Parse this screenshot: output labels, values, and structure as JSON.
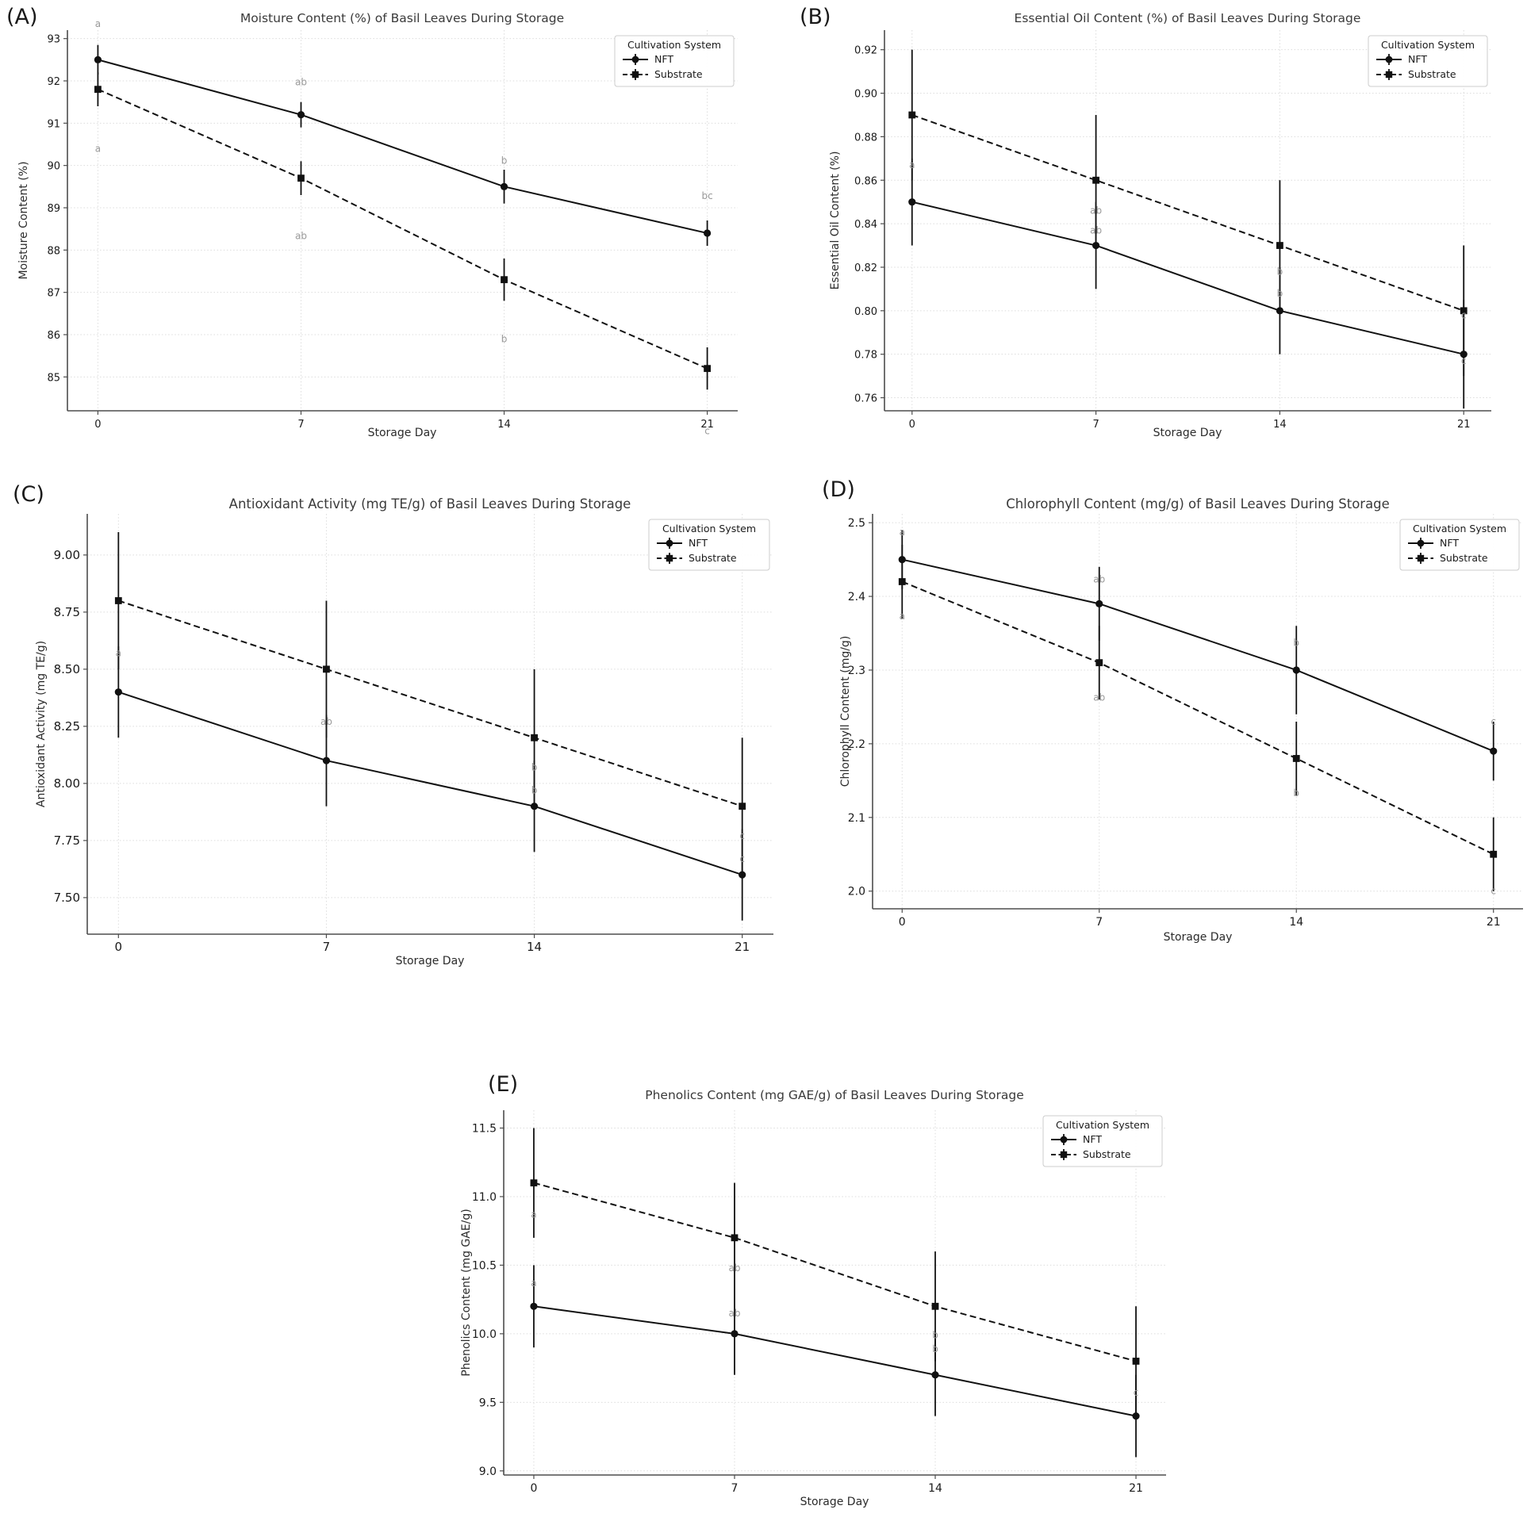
{
  "palette": {
    "line_color": "#111111",
    "sig_letter_color": "#999999",
    "grid_color": "#dcdcdc",
    "spine_color": "#4d4d4d",
    "title_color": "#3a3a3a",
    "legend_border": "#cccccc",
    "background": "#ffffff"
  },
  "chart_data": [
    {
      "type": "line",
      "panel": "(A)",
      "title": "Moisture Content (%) of Basil Leaves During Storage",
      "xlabel": "Storage Day",
      "ylabel": "Moisture Content (%)",
      "x": [
        0,
        7,
        14,
        21
      ],
      "x_tick_labels": [
        "0",
        "7",
        "14",
        "21"
      ],
      "xlim": [
        -1.05,
        22.05
      ],
      "ylim": [
        84.2,
        93.2
      ],
      "y_ticks": [
        {
          "v": 85,
          "label": "85"
        },
        {
          "v": 86,
          "label": "86"
        },
        {
          "v": 87,
          "label": "87"
        },
        {
          "v": 88,
          "label": "88"
        },
        {
          "v": 89,
          "label": "89"
        },
        {
          "v": 90,
          "label": "90"
        },
        {
          "v": 91,
          "label": "91"
        },
        {
          "v": 92,
          "label": "92"
        },
        {
          "v": 93,
          "label": "93"
        }
      ],
      "grid": true,
      "legend": {
        "title": "Cultivation System",
        "position": "upper right"
      },
      "series": [
        {
          "name": "NFT",
          "line": "solid",
          "marker": "circle",
          "values": [
            92.5,
            91.2,
            89.5,
            88.4
          ],
          "errors": [
            0.35,
            0.3,
            0.4,
            0.3
          ]
        },
        {
          "name": "Substrate",
          "line": "dashed",
          "marker": "square",
          "values": [
            91.8,
            89.7,
            87.3,
            85.2
          ],
          "errors": [
            0.4,
            0.4,
            0.5,
            0.5
          ]
        }
      ],
      "sig_letters": [
        {
          "x": 0,
          "y": 93.35,
          "text": "a"
        },
        {
          "x": 0,
          "y": 90.4,
          "text": "a"
        },
        {
          "x": 7,
          "y": 91.97,
          "text": "ab"
        },
        {
          "x": 7,
          "y": 88.33,
          "text": "ab"
        },
        {
          "x": 14,
          "y": 90.12,
          "text": "b"
        },
        {
          "x": 14,
          "y": 85.9,
          "text": "b"
        },
        {
          "x": 21,
          "y": 89.28,
          "text": "bc"
        },
        {
          "x": 21,
          "y": 83.72,
          "text": "c"
        }
      ]
    },
    {
      "type": "line",
      "panel": "(B)",
      "title": "Essential Oil Content (%) of Basil Leaves During Storage",
      "xlabel": "Storage Day",
      "ylabel": "Essential Oil Content (%)",
      "x": [
        0,
        7,
        14,
        21
      ],
      "x_tick_labels": [
        "0",
        "7",
        "14",
        "21"
      ],
      "xlim": [
        -1.05,
        22.05
      ],
      "ylim": [
        0.754,
        0.929
      ],
      "y_ticks": [
        {
          "v": 0.76,
          "label": "0.76"
        },
        {
          "v": 0.78,
          "label": "0.78"
        },
        {
          "v": 0.8,
          "label": "0.80"
        },
        {
          "v": 0.82,
          "label": "0.82"
        },
        {
          "v": 0.84,
          "label": "0.84"
        },
        {
          "v": 0.86,
          "label": "0.86"
        },
        {
          "v": 0.88,
          "label": "0.88"
        },
        {
          "v": 0.9,
          "label": "0.90"
        },
        {
          "v": 0.92,
          "label": "0.92"
        }
      ],
      "grid": true,
      "legend": {
        "title": "Cultivation System",
        "position": "upper right"
      },
      "series": [
        {
          "name": "NFT",
          "line": "solid",
          "marker": "circle",
          "values": [
            0.85,
            0.83,
            0.8,
            0.78
          ],
          "errors": [
            0.02,
            0.02,
            0.02,
            0.025
          ]
        },
        {
          "name": "Substrate",
          "line": "dashed",
          "marker": "square",
          "values": [
            0.89,
            0.86,
            0.83,
            0.8
          ],
          "errors": [
            0.03,
            0.03,
            0.03,
            0.03
          ]
        }
      ],
      "sig_letters": [
        {
          "x": 0,
          "y": 0.867,
          "text": "a"
        },
        {
          "x": 7,
          "y": 0.846,
          "text": "ab"
        },
        {
          "x": 7,
          "y": 0.837,
          "text": "ab"
        },
        {
          "x": 14,
          "y": 0.818,
          "text": "b"
        },
        {
          "x": 14,
          "y": 0.808,
          "text": "b"
        },
        {
          "x": 21,
          "y": 0.798,
          "text": "c"
        },
        {
          "x": 21,
          "y": 0.777,
          "text": "c"
        }
      ]
    },
    {
      "type": "line",
      "panel": "(C)",
      "title": "Antioxidant Activity (mg TE/g) of Basil Leaves During Storage",
      "xlabel": "Storage Day",
      "ylabel": "Antioxidant Activity (mg TE/g)",
      "x": [
        0,
        7,
        14,
        21
      ],
      "x_tick_labels": [
        "0",
        "7",
        "14",
        "21"
      ],
      "xlim": [
        -1.05,
        22.05
      ],
      "ylim": [
        7.34,
        9.18
      ],
      "y_ticks": [
        {
          "v": 7.5,
          "label": "7.50"
        },
        {
          "v": 7.75,
          "label": "7.75"
        },
        {
          "v": 8.0,
          "label": "8.00"
        },
        {
          "v": 8.25,
          "label": "8.25"
        },
        {
          "v": 8.5,
          "label": "8.50"
        },
        {
          "v": 8.75,
          "label": "8.75"
        },
        {
          "v": 9.0,
          "label": "9.00"
        }
      ],
      "grid": true,
      "legend": {
        "title": "Cultivation System",
        "position": "upper right"
      },
      "series": [
        {
          "name": "NFT",
          "line": "solid",
          "marker": "circle",
          "values": [
            8.4,
            8.1,
            7.9,
            7.6
          ],
          "errors": [
            0.2,
            0.2,
            0.2,
            0.2
          ]
        },
        {
          "name": "Substrate",
          "line": "dashed",
          "marker": "square",
          "values": [
            8.8,
            8.5,
            8.2,
            7.9
          ],
          "errors": [
            0.3,
            0.3,
            0.3,
            0.3
          ]
        }
      ],
      "sig_letters": [
        {
          "x": 0,
          "y": 8.57,
          "text": "a"
        },
        {
          "x": 7,
          "y": 8.27,
          "text": "ab"
        },
        {
          "x": 14,
          "y": 8.07,
          "text": "b"
        },
        {
          "x": 14,
          "y": 7.97,
          "text": "b"
        },
        {
          "x": 21,
          "y": 7.77,
          "text": "c"
        },
        {
          "x": 21,
          "y": 7.67,
          "text": "c"
        }
      ]
    },
    {
      "type": "line",
      "panel": "(D)",
      "title": "Chlorophyll Content (mg/g) of Basil Leaves During Storage",
      "xlabel": "Storage Day",
      "ylabel": "Chlorophyll Content (mg/g)",
      "x": [
        0,
        7,
        14,
        21
      ],
      "x_tick_labels": [
        "0",
        "7",
        "14",
        "21"
      ],
      "xlim": [
        -1.05,
        22.05
      ],
      "ylim": [
        1.976,
        2.512
      ],
      "y_ticks": [
        {
          "v": 2.0,
          "label": "2.0"
        },
        {
          "v": 2.1,
          "label": "2.1"
        },
        {
          "v": 2.2,
          "label": "2.2"
        },
        {
          "v": 2.3,
          "label": "2.3"
        },
        {
          "v": 2.4,
          "label": "2.4"
        },
        {
          "v": 2.5,
          "label": "2.5"
        }
      ],
      "grid": true,
      "legend": {
        "title": "Cultivation System",
        "position": "upper right"
      },
      "series": [
        {
          "name": "NFT",
          "line": "solid",
          "marker": "circle",
          "values": [
            2.45,
            2.39,
            2.3,
            2.19
          ],
          "errors": [
            0.04,
            0.05,
            0.06,
            0.04
          ]
        },
        {
          "name": "Substrate",
          "line": "dashed",
          "marker": "square",
          "values": [
            2.42,
            2.31,
            2.18,
            2.05
          ],
          "errors": [
            0.05,
            0.05,
            0.05,
            0.05
          ]
        }
      ],
      "sig_letters": [
        {
          "x": 0,
          "y": 2.487,
          "text": "a"
        },
        {
          "x": 0,
          "y": 2.373,
          "text": "a"
        },
        {
          "x": 7,
          "y": 2.423,
          "text": "ab"
        },
        {
          "x": 7,
          "y": 2.263,
          "text": "ab"
        },
        {
          "x": 14,
          "y": 2.337,
          "text": "b"
        },
        {
          "x": 14,
          "y": 2.133,
          "text": "b"
        },
        {
          "x": 21,
          "y": 2.23,
          "text": "c"
        },
        {
          "x": 21,
          "y": 2.0,
          "text": "c"
        }
      ]
    },
    {
      "type": "line",
      "panel": "(E)",
      "title": "Phenolics Content (mg GAE/g) of Basil Leaves During Storage",
      "xlabel": "Storage Day",
      "ylabel": "Phenolics Content (mg GAE/g)",
      "x": [
        0,
        7,
        14,
        21
      ],
      "x_tick_labels": [
        "0",
        "7",
        "14",
        "21"
      ],
      "xlim": [
        -1.05,
        22.05
      ],
      "ylim": [
        8.97,
        11.63
      ],
      "y_ticks": [
        {
          "v": 9.0,
          "label": "9.0"
        },
        {
          "v": 9.5,
          "label": "9.5"
        },
        {
          "v": 10.0,
          "label": "10.0"
        },
        {
          "v": 10.5,
          "label": "10.5"
        },
        {
          "v": 11.0,
          "label": "11.0"
        },
        {
          "v": 11.5,
          "label": "11.5"
        }
      ],
      "grid": true,
      "legend": {
        "title": "Cultivation System",
        "position": "upper right"
      },
      "series": [
        {
          "name": "NFT",
          "line": "solid",
          "marker": "circle",
          "values": [
            10.2,
            10.0,
            9.7,
            9.4
          ],
          "errors": [
            0.3,
            0.3,
            0.3,
            0.3
          ]
        },
        {
          "name": "Substrate",
          "line": "dashed",
          "marker": "square",
          "values": [
            11.1,
            10.7,
            10.2,
            9.8
          ],
          "errors": [
            0.4,
            0.4,
            0.4,
            0.4
          ]
        }
      ],
      "sig_letters": [
        {
          "x": 0,
          "y": 10.87,
          "text": "a"
        },
        {
          "x": 0,
          "y": 10.37,
          "text": "a"
        },
        {
          "x": 7,
          "y": 10.48,
          "text": "ab"
        },
        {
          "x": 7,
          "y": 10.15,
          "text": "ab"
        },
        {
          "x": 14,
          "y": 9.99,
          "text": "b"
        },
        {
          "x": 14,
          "y": 9.89,
          "text": "b"
        },
        {
          "x": 21,
          "y": 9.57,
          "text": "c"
        }
      ]
    }
  ]
}
